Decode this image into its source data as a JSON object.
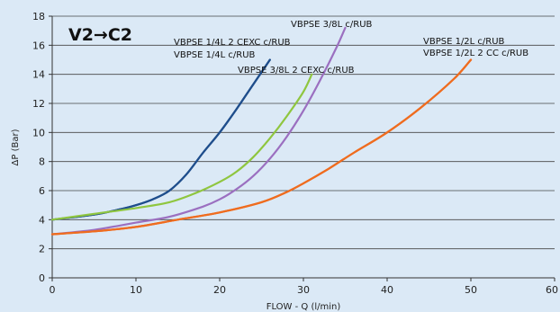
{
  "chart_data": {
    "type": "line",
    "title": "V2→C2",
    "xlabel": "FLOW - Q (l/min)",
    "ylabel": "ΔP (Bar)",
    "xlim": [
      0,
      60
    ],
    "ylim": [
      0,
      18
    ],
    "xticks": [
      0,
      10,
      20,
      30,
      40,
      50,
      60
    ],
    "yticks": [
      0,
      2,
      4,
      6,
      8,
      10,
      12,
      14,
      16,
      18
    ],
    "grid": "horizontal",
    "background": "#dbe9f6",
    "series": [
      {
        "name": "VBPSE 1/4L 2 CEXC c/RUB",
        "color": "#1f4e8c",
        "x": [
          0,
          5,
          8,
          10,
          12,
          14,
          16,
          18,
          20,
          22,
          24,
          26
        ],
        "y": [
          4.0,
          4.35,
          4.7,
          5.0,
          5.4,
          6.0,
          7.1,
          8.6,
          10.0,
          11.6,
          13.3,
          15.0
        ]
      },
      {
        "name": "VBPSE 1/4L c/RUB",
        "color": "#1f4e8c",
        "x": [
          0,
          5,
          8,
          10,
          12,
          14,
          16,
          18,
          20,
          22,
          24,
          26
        ],
        "y": [
          4.0,
          4.35,
          4.7,
          5.0,
          5.4,
          6.0,
          7.1,
          8.6,
          10.0,
          11.6,
          13.3,
          15.0
        ]
      },
      {
        "name": "VBPSE 3/8L 2 CEXC c/RUB",
        "color": "#8fc63f",
        "x": [
          0,
          5,
          10,
          14,
          17,
          20,
          22,
          24,
          26,
          28,
          30,
          31
        ],
        "y": [
          4.0,
          4.4,
          4.8,
          5.2,
          5.8,
          6.6,
          7.3,
          8.3,
          9.6,
          11.1,
          12.8,
          14.0
        ]
      },
      {
        "name": "VBPSE 3/8L c/RUB",
        "color": "#9b6fc0",
        "x": [
          0,
          5,
          10,
          14,
          18,
          20,
          22,
          24,
          26,
          28,
          30,
          32,
          34,
          35
        ],
        "y": [
          3.0,
          3.3,
          3.8,
          4.2,
          4.9,
          5.4,
          6.1,
          7.0,
          8.2,
          9.7,
          11.5,
          13.6,
          15.9,
          17.2
        ]
      },
      {
        "name": "VBPSE 1/2L c/RUB",
        "color": "#ef6c1f",
        "x": [
          0,
          5,
          10,
          15,
          20,
          25,
          28,
          30,
          33,
          36,
          40,
          44,
          48,
          50
        ],
        "y": [
          3.0,
          3.2,
          3.5,
          4.0,
          4.5,
          5.2,
          5.9,
          6.5,
          7.5,
          8.6,
          10.0,
          11.7,
          13.7,
          15.0
        ]
      },
      {
        "name": "VBPSE 1/2L 2 CC c/RUB",
        "color": "#ef6c1f",
        "x": [
          0,
          5,
          10,
          15,
          20,
          25,
          28,
          30,
          33,
          36,
          40,
          44,
          48,
          50
        ],
        "y": [
          3.0,
          3.2,
          3.5,
          4.0,
          4.5,
          5.2,
          5.9,
          6.5,
          7.5,
          8.6,
          10.0,
          11.7,
          13.7,
          15.0
        ]
      }
    ]
  }
}
